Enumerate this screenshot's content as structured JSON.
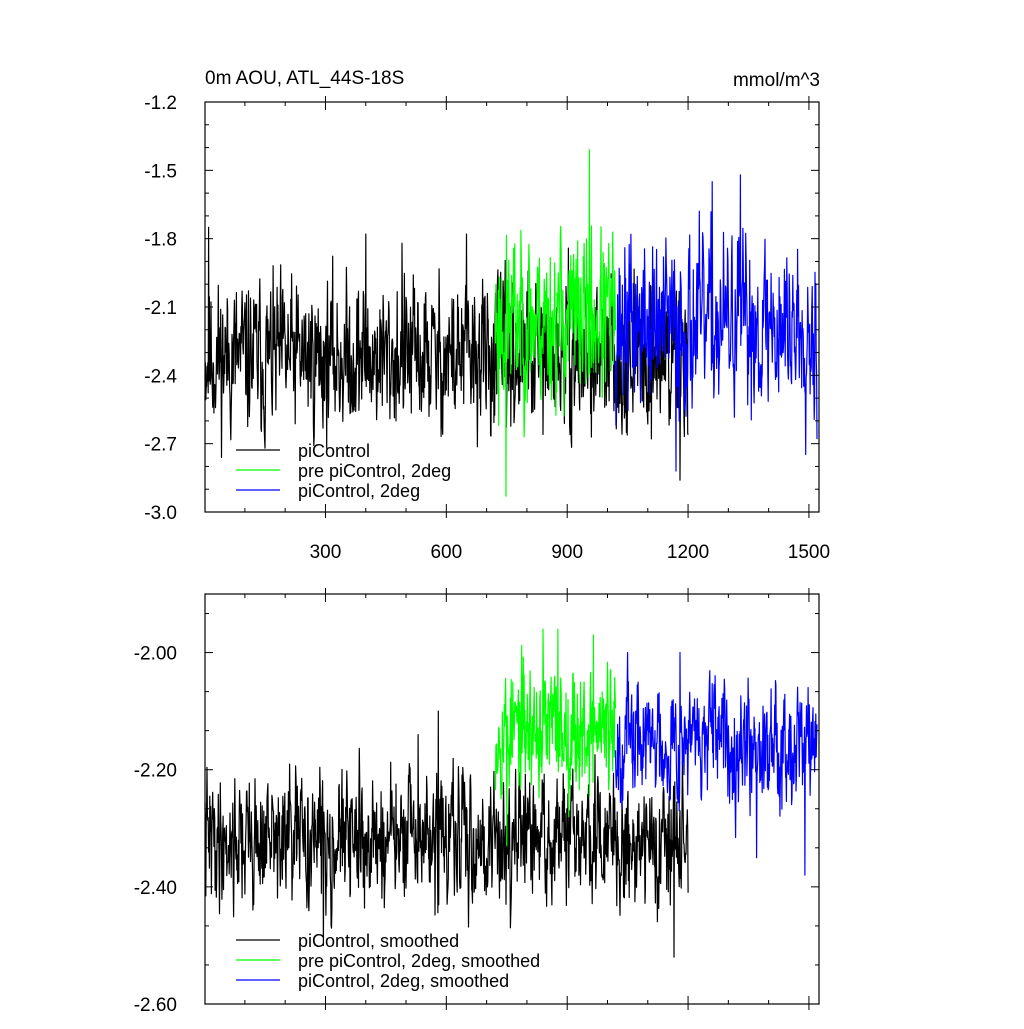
{
  "colors": {
    "black": "#000000",
    "green": "#00ff00",
    "blue": "#0000ff"
  },
  "chart_data": [
    {
      "type": "line",
      "title": "0m AOU, ATL_44S-18S",
      "units": "mmol/m^3",
      "xlim": [
        1,
        1525
      ],
      "ylim": [
        -3.0,
        -1.2
      ],
      "xticks": [
        "300",
        "600",
        "900",
        "1200",
        "1500"
      ],
      "xtick_values": [
        300,
        600,
        900,
        1200,
        1500
      ],
      "yticks": [
        "-1.2",
        "-1.5",
        "-1.8",
        "-2.1",
        "-2.4",
        "-2.7",
        "-3.0"
      ],
      "ytick_values": [
        -1.2,
        -1.5,
        -1.8,
        -2.1,
        -2.4,
        -2.7,
        -3.0
      ],
      "legend_position": "bottom-left",
      "series": [
        {
          "name": "piControl",
          "color": "#000000",
          "x_range": [
            1,
            1200
          ],
          "mean": -2.32,
          "noise": 0.15,
          "seed": 11,
          "spikes": [
            [
              10,
              -1.75
            ],
            [
              400,
              -1.78
            ],
            [
              490,
              -1.82
            ],
            [
              650,
              -1.78
            ],
            [
              1180,
              -2.86
            ],
            [
              150,
              -2.72
            ]
          ]
        },
        {
          "name": "pre piControl, 2deg",
          "color": "#00ff00",
          "x_range": [
            722,
            1020
          ],
          "mean": -2.15,
          "noise": 0.17,
          "seed": 23,
          "spikes": [
            [
              955,
              -1.41
            ],
            [
              748,
              -2.93
            ],
            [
              730,
              -2.62
            ]
          ]
        },
        {
          "name": "piControl, 2deg",
          "color": "#0000ff",
          "x_range": [
            1020,
            1520
          ],
          "mean": -2.18,
          "noise": 0.17,
          "seed": 37,
          "spikes": [
            [
              1330,
              -1.52
            ],
            [
              1260,
              -1.55
            ],
            [
              1170,
              -2.82
            ],
            [
              1520,
              -2.68
            ]
          ]
        }
      ]
    },
    {
      "type": "line",
      "title": "",
      "units": "",
      "xlim": [
        1,
        1525
      ],
      "ylim": [
        -2.6,
        -1.9
      ],
      "xticks": [],
      "xtick_values": [
        300,
        600,
        900,
        1200,
        1500
      ],
      "yticks": [
        "-2.00",
        "-2.20",
        "-2.40",
        "-2.60"
      ],
      "ytick_values": [
        -2.0,
        -2.2,
        -2.4,
        -2.6
      ],
      "legend_position": "bottom-left",
      "series": [
        {
          "name": "piControl, smoothed",
          "color": "#000000",
          "x_range": [
            1,
            1200
          ],
          "mean": -2.32,
          "noise": 0.05,
          "seed": 41,
          "spikes": [
            [
              580,
              -2.1
            ],
            [
              530,
              -2.14
            ],
            [
              1165,
              -2.52
            ],
            [
              295,
              -2.5
            ],
            [
              1200,
              -2.41
            ]
          ]
        },
        {
          "name": "pre piControl, 2deg, smoothed",
          "color": "#00ff00",
          "x_range": [
            722,
            1020
          ],
          "mean": -2.13,
          "noise": 0.05,
          "seed": 53,
          "spikes": [
            [
              840,
              -1.96
            ],
            [
              877,
              -1.96
            ],
            [
              965,
              -1.97
            ],
            [
              750,
              -2.33
            ]
          ]
        },
        {
          "name": "piControl, 2deg, smoothed",
          "color": "#0000ff",
          "x_range": [
            1020,
            1520
          ],
          "mean": -2.15,
          "noise": 0.045,
          "seed": 67,
          "spikes": [
            [
              1050,
              -2.0
            ],
            [
              1180,
              -2.0
            ],
            [
              1370,
              -2.35
            ],
            [
              1490,
              -2.38
            ]
          ]
        }
      ]
    }
  ]
}
